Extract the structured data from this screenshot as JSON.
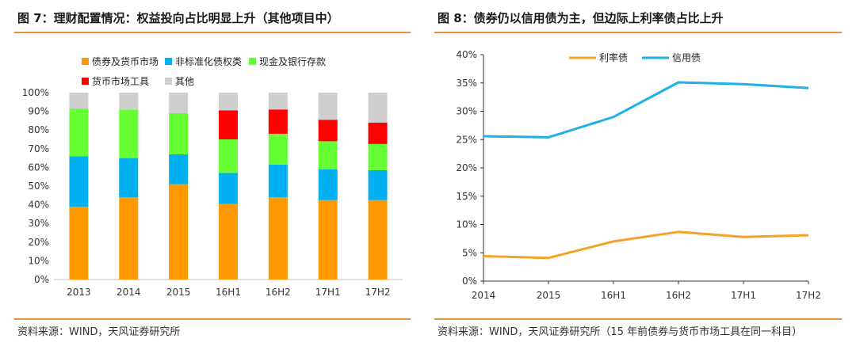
{
  "left": {
    "title": "图 7：理财配置情况：权益投向占比明显上升（其他项目中）",
    "source": "资料来源：WIND，天风证券研究所"
  },
  "right": {
    "title": "图 8：债券仍以信用债为主，但边际上利率债占比上升",
    "source": "资料来源：WIND，天风证券研究所（15 年前债券与货币市场工具在同一科目）"
  },
  "colors": {
    "bond_money": "#ff9900",
    "nonstandard": "#00b0f0",
    "cash_deposit": "#66ff33",
    "money_tools": "#ff0000",
    "other": "#cfcfcf",
    "rate_bond": "#f5a327",
    "credit_bond": "#1fb0e6",
    "rule": "#e6913f"
  },
  "chart_data": [
    {
      "type": "bar",
      "stacked": true,
      "categories": [
        "2013",
        "2014",
        "2015",
        "16H1",
        "16H2",
        "17H1",
        "17H2"
      ],
      "series": [
        {
          "name": "债券及货币市场",
          "values": [
            39,
            44,
            51,
            40.5,
            44,
            42.5,
            42.5
          ]
        },
        {
          "name": "非标准化债权类",
          "values": [
            27,
            21,
            16,
            16.5,
            17.5,
            16.5,
            16
          ]
        },
        {
          "name": "现金及银行存款",
          "values": [
            25.5,
            26,
            22,
            18,
            16.5,
            15,
            14
          ]
        },
        {
          "name": "货币市场工具",
          "values": [
            0,
            0,
            0,
            15.5,
            13,
            11.5,
            11.5
          ]
        },
        {
          "name": "其他",
          "values": [
            8.5,
            9,
            11,
            9.5,
            9,
            14.5,
            16
          ]
        }
      ],
      "yticks": [
        "0%",
        "10%",
        "20%",
        "30%",
        "40%",
        "50%",
        "60%",
        "70%",
        "80%",
        "90%",
        "100%"
      ],
      "ylim": [
        0,
        100
      ],
      "legend_position": "top"
    },
    {
      "type": "line",
      "x": [
        "2014",
        "2015",
        "16H1",
        "16H2",
        "17H1",
        "17H2"
      ],
      "series": [
        {
          "name": "利率债",
          "values": [
            4.4,
            4.1,
            7.0,
            8.7,
            7.8,
            8.1
          ]
        },
        {
          "name": "信用债",
          "values": [
            25.6,
            25.4,
            29.0,
            35.1,
            34.8,
            34.1
          ]
        }
      ],
      "yticks": [
        "0%",
        "5%",
        "10%",
        "15%",
        "20%",
        "25%",
        "30%",
        "35%",
        "40%"
      ],
      "ylim": [
        0,
        40
      ],
      "legend_position": "top"
    }
  ]
}
